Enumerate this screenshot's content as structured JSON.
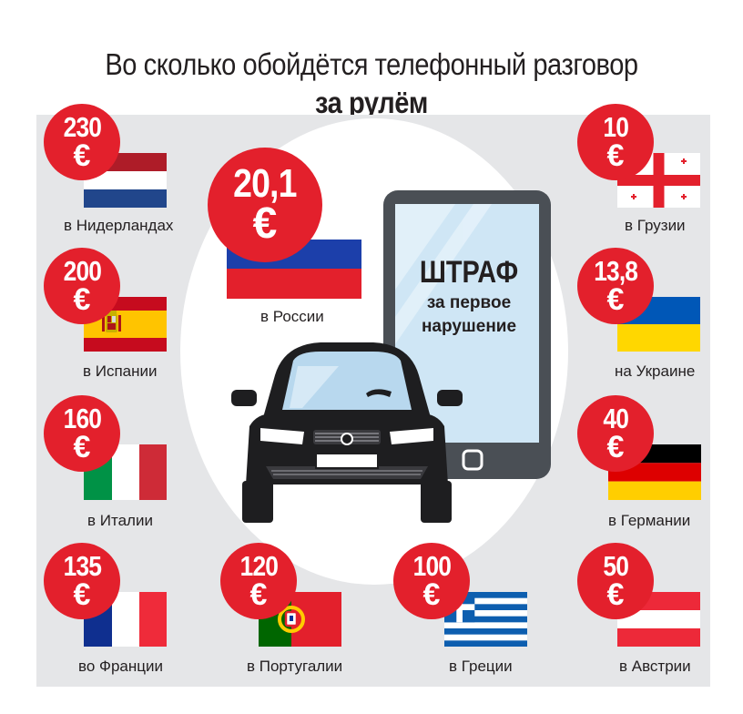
{
  "title": {
    "line1": "Во сколько обойдётся телефонный разговор",
    "line2": "за рулём"
  },
  "currency_symbol": "€",
  "phone": {
    "headline": "ШТРАФ",
    "line1": "за первое",
    "line2": "нарушение"
  },
  "countries": {
    "netherlands": {
      "amount": "230",
      "label": "в Нидерландах"
    },
    "spain": {
      "amount": "200",
      "label": "в Испании"
    },
    "italy": {
      "amount": "160",
      "label": "в Италии"
    },
    "france": {
      "amount": "135",
      "label": "во Франции"
    },
    "portugal": {
      "amount": "120",
      "label": "в Португалии"
    },
    "greece": {
      "amount": "100",
      "label": "в Греции"
    },
    "austria": {
      "amount": "50",
      "label": "в Австрии"
    },
    "germany": {
      "amount": "40",
      "label": "в Германии"
    },
    "ukraine": {
      "amount": "13,8",
      "label": "на Украине"
    },
    "georgia": {
      "amount": "10",
      "label": "в Грузии"
    },
    "russia": {
      "amount": "20,1",
      "label": "в России"
    }
  },
  "colors": {
    "badge_red": "#e3202c",
    "panel_gray": "#e5e6e8",
    "phone_body": "#4a4f55",
    "phone_screen": "#cfe6f5",
    "car_body": "#1e1e20"
  }
}
